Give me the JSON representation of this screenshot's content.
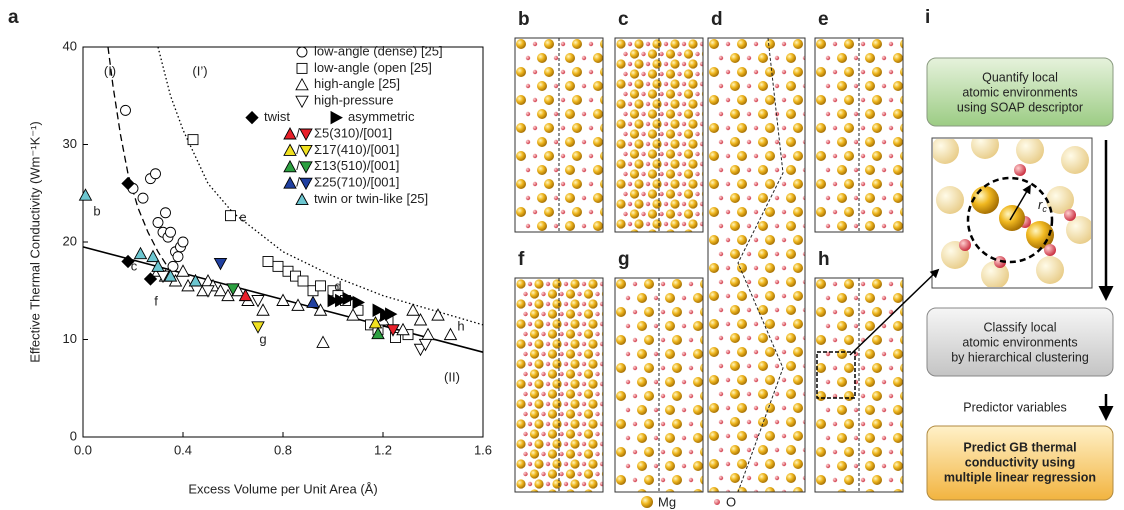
{
  "chart_data": {
    "type": "scatter",
    "panel_label": "a",
    "xlabel": "Excess Volume per Unit Area (Å)",
    "ylabel": "Effective Thermal Conductivity (Wm⁻¹K⁻¹)",
    "xlim": [
      0,
      1.6
    ],
    "ylim": [
      0,
      40
    ],
    "xticks": [
      {
        "value": 0,
        "label": "0.0"
      },
      0.4,
      0.8,
      1.2,
      1.6
    ],
    "yticks": [
      0,
      10,
      20,
      30,
      40
    ],
    "series": [
      {
        "name": "low-angle (dense) [25]",
        "marker": "circle",
        "color": "#ffffff",
        "x": [
          0.17,
          0.2,
          0.24,
          0.27,
          0.29,
          0.3,
          0.32,
          0.33,
          0.34,
          0.35,
          0.37,
          0.38,
          0.39,
          0.4,
          0.36
        ],
        "values": [
          33.5,
          25.5,
          24.5,
          26.5,
          27,
          22,
          21,
          23,
          20.5,
          21,
          19,
          18.5,
          19.5,
          20,
          17.5
        ]
      },
      {
        "name": "low-angle (open [25]",
        "marker": "square",
        "color": "#ffffff",
        "x": [
          0.44,
          0.59,
          0.74,
          0.78,
          0.82,
          0.85,
          0.88,
          0.92,
          0.95,
          1.0,
          1.02,
          1.05,
          1.1,
          1.15,
          1.18,
          1.22,
          1.25,
          1.3
        ],
        "values": [
          30.5,
          22.7,
          18,
          17.5,
          17,
          16.5,
          16,
          15,
          15.5,
          15,
          14.5,
          14,
          13,
          11.5,
          11,
          12,
          10.2,
          10.5
        ]
      },
      {
        "name": "high-angle [25]",
        "marker": "triangle-up",
        "color": "#ffffff",
        "x": [
          0.3,
          0.33,
          0.37,
          0.4,
          0.42,
          0.45,
          0.48,
          0.5,
          0.52,
          0.55,
          0.58,
          0.62,
          0.66,
          0.72,
          0.8,
          0.86,
          0.95,
          0.96,
          1.08,
          1.2,
          1.28,
          1.32,
          1.35,
          1.38,
          1.42,
          1.47
        ],
        "values": [
          17,
          16.5,
          16,
          17,
          15.5,
          16,
          15,
          16,
          15.5,
          15,
          14.5,
          15,
          14,
          13,
          14,
          13.5,
          13,
          9.7,
          12.5,
          12,
          11,
          13,
          12,
          10.5,
          12.5,
          10.5
        ]
      },
      {
        "name": "high-pressure",
        "marker": "triangle-down",
        "color": "#ffffff",
        "x": [
          0.32,
          0.5,
          0.7,
          1.35,
          1.37
        ],
        "values": [
          16.5,
          15,
          14,
          9,
          9.5
        ]
      },
      {
        "name": "twist",
        "marker": "diamond",
        "color": "#000000",
        "x": [
          0.18,
          0.18,
          0.27
        ],
        "values": [
          18,
          26,
          16.2
        ]
      },
      {
        "name": "asymmetric",
        "marker": "triangle-right",
        "color": "#000000",
        "x": [
          1.0,
          1.03,
          1.06,
          1.1,
          1.18,
          1.21,
          1.23
        ],
        "values": [
          14,
          14,
          14.2,
          13.8,
          13,
          12.5,
          12.6
        ]
      },
      {
        "name": "Σ5(310)/[001]",
        "marker": [
          "triangle-up",
          "triangle-down"
        ],
        "color": "#e8202a",
        "x": [
          0.65,
          1.24
        ],
        "values": [
          14.5,
          11
        ]
      },
      {
        "name": "Σ17(410)/[001]",
        "marker": [
          "triangle-down",
          "triangle-up"
        ],
        "color": "#f0e020",
        "x": [
          0.7,
          1.17
        ],
        "values": [
          11.3,
          11.7
        ]
      },
      {
        "name": "Σ13(510)/[001]",
        "marker": [
          "triangle-down",
          "triangle-up"
        ],
        "color": "#2ca040",
        "x": [
          0.6,
          1.18
        ],
        "values": [
          15.2,
          10.6
        ]
      },
      {
        "name": "Σ25(710)/[001]",
        "marker": [
          "triangle-down",
          "triangle-up"
        ],
        "color": "#2040a0",
        "x": [
          0.55,
          0.92
        ],
        "values": [
          17.8,
          13.8
        ]
      },
      {
        "name": "twin or twin-like [25]",
        "marker": "triangle-up",
        "color": "#6cc6d0",
        "x": [
          0.01,
          0.23,
          0.28,
          0.3,
          0.35,
          0.45
        ],
        "values": [
          24.8,
          18.8,
          18.5,
          17.5,
          16.5,
          16
        ]
      }
    ],
    "fits": [
      {
        "name": "(I)",
        "style": "dashed",
        "x": [
          0.1,
          0.12,
          0.15,
          0.18,
          0.22,
          0.26,
          0.3,
          0.35
        ],
        "values": [
          40,
          36,
          31,
          27,
          23.5,
          21,
          19,
          17
        ]
      },
      {
        "name": "(I’)",
        "style": "dotted",
        "x": [
          0.3,
          0.35,
          0.4,
          0.5,
          0.6,
          0.8,
          1.0,
          1.2,
          1.4,
          1.6
        ],
        "values": [
          40,
          35,
          31.5,
          26,
          23,
          19,
          16.5,
          14.5,
          13,
          11.5
        ]
      },
      {
        "name": "(II)",
        "style": "solid",
        "x": [
          0,
          1.6
        ],
        "values": [
          19.5,
          8.7
        ]
      }
    ],
    "annotations": [
      "b",
      "c",
      "d",
      "e",
      "f",
      "g",
      "h"
    ]
  },
  "structure_panels": {
    "labels": [
      "b",
      "c",
      "d",
      "e",
      "f",
      "g",
      "h"
    ],
    "legend": [
      "Mg",
      "O"
    ]
  },
  "flowchart": {
    "panel_label": "i",
    "step1": [
      "Quantify local",
      "atomic environments",
      "using SOAP descriptor"
    ],
    "inset_label": "r",
    "inset_subscript": "c",
    "step2": [
      "Classify local",
      "atomic environments",
      "by hierarchical clustering"
    ],
    "arrow_label": "Predictor variables",
    "step3": [
      "Predict GB thermal",
      "conductivity using",
      "multiple linear regression"
    ]
  }
}
